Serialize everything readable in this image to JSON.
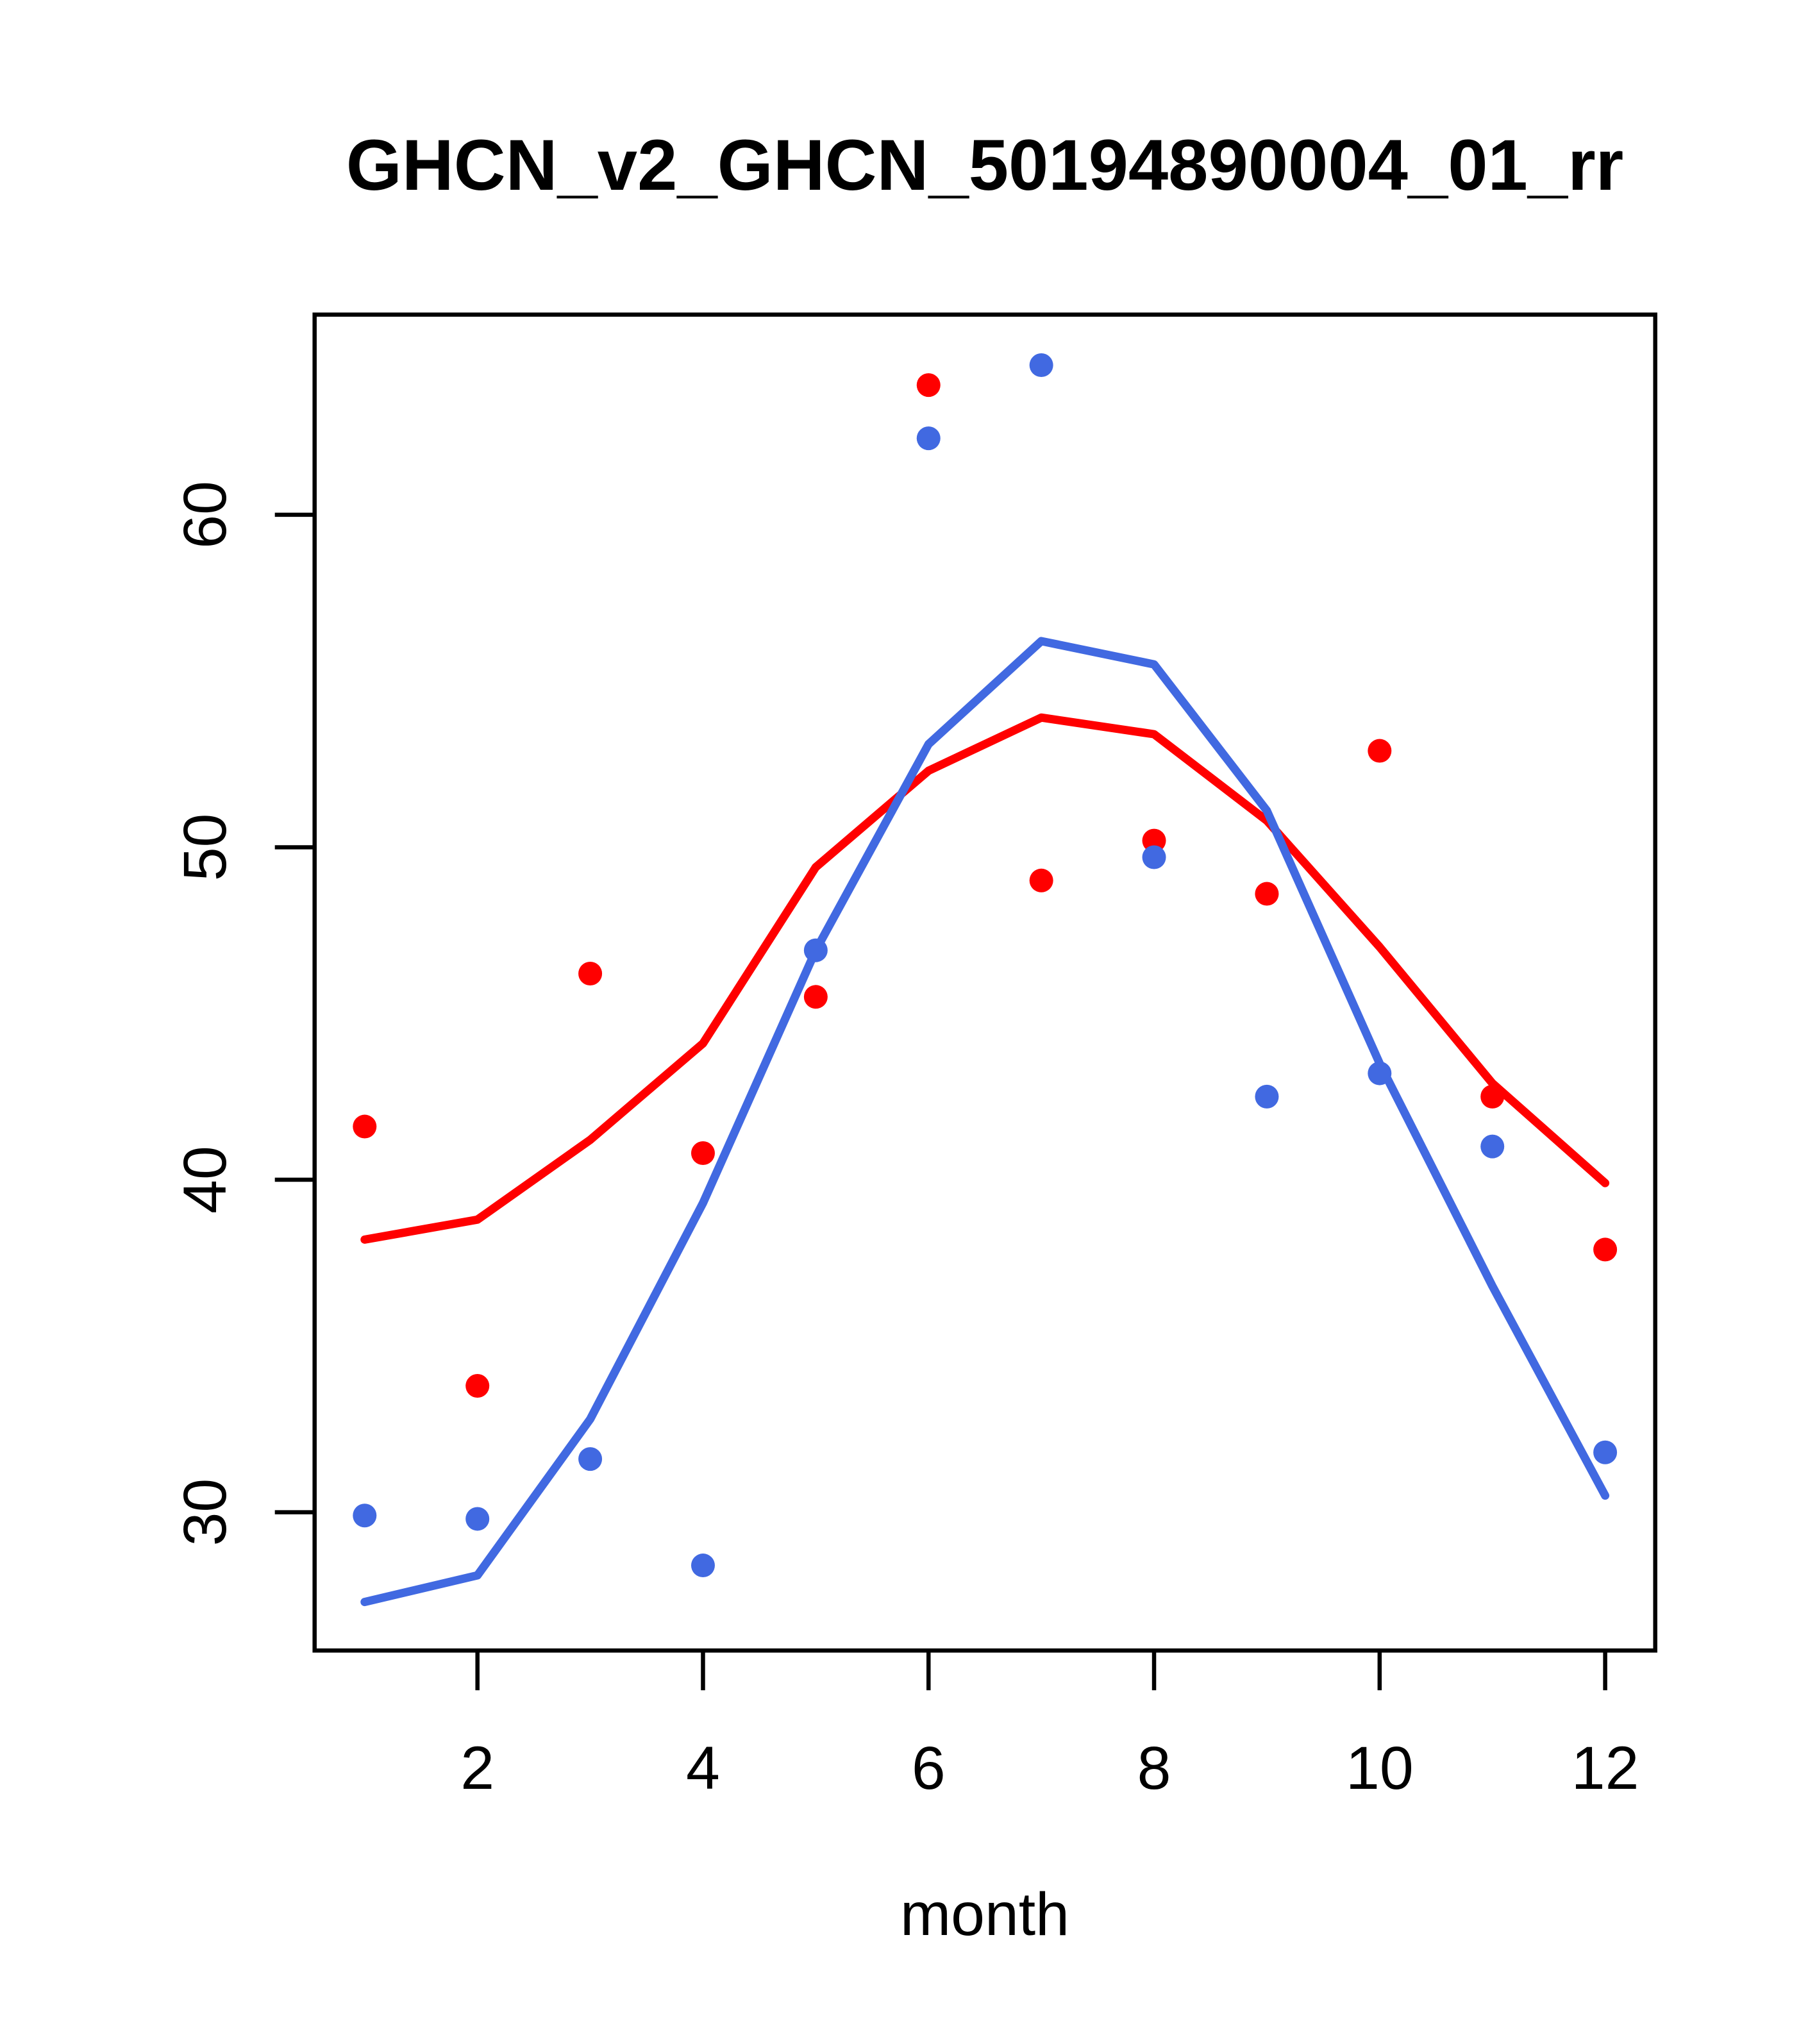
{
  "chart_data": {
    "type": "scatter",
    "title": "GHCN_v2_GHCN_50194890004_01_rr",
    "xlabel": "month",
    "ylabel": "",
    "x": [
      1,
      2,
      3,
      4,
      5,
      6,
      7,
      8,
      9,
      10,
      11,
      12
    ],
    "series": [
      {
        "name": "red-monthly-points",
        "kind": "points",
        "color": "#FF0000",
        "values": [
          41.6,
          33.8,
          46.2,
          40.8,
          45.5,
          63.9,
          49.0,
          50.2,
          48.6,
          52.9,
          42.5,
          37.9
        ]
      },
      {
        "name": "blue-monthly-points",
        "kind": "points",
        "color": "#4169E1",
        "values": [
          29.9,
          29.8,
          31.6,
          28.4,
          46.9,
          62.3,
          64.5,
          49.7,
          42.5,
          43.2,
          41.0,
          31.8
        ]
      },
      {
        "name": "red-climatology-line",
        "kind": "line",
        "color": "#FF0000",
        "values": [
          38.2,
          38.8,
          41.2,
          44.1,
          49.4,
          52.3,
          53.9,
          53.4,
          50.8,
          47.0,
          42.9,
          39.9
        ]
      },
      {
        "name": "blue-climatology-line",
        "kind": "line",
        "color": "#4169E1",
        "values": [
          27.3,
          28.1,
          32.8,
          39.3,
          46.9,
          53.1,
          56.2,
          55.5,
          51.1,
          43.5,
          36.8,
          30.5
        ]
      }
    ],
    "x_ticks": [
      2,
      4,
      6,
      8,
      10,
      12
    ],
    "y_ticks": [
      30,
      40,
      50,
      60
    ],
    "xlim": [
      0.556,
      12.444
    ],
    "ylim": [
      25.84,
      66.02
    ],
    "grid": false,
    "legend_position": "none"
  }
}
